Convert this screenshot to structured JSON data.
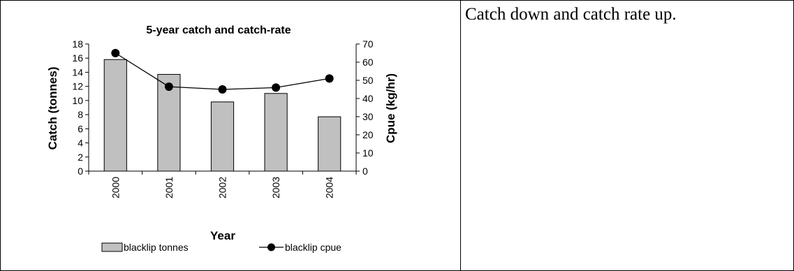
{
  "comment": "Catch down and catch rate up.",
  "chart_data": {
    "type": "bar+line",
    "title": "5-year catch and catch-rate",
    "xlabel": "Year",
    "ylabel": "Catch (tonnes)",
    "y2label": "Cpue (kg/hr)",
    "categories": [
      "2000",
      "2001",
      "2002",
      "2003",
      "2004"
    ],
    "ylim": [
      0,
      18
    ],
    "y2lim": [
      0,
      70
    ],
    "yticks": [
      "0",
      "2",
      "4",
      "6",
      "8",
      "10",
      "12",
      "14",
      "16",
      "18"
    ],
    "y2ticks": [
      "0",
      "10",
      "20",
      "30",
      "40",
      "50",
      "60",
      "70"
    ],
    "series": [
      {
        "name": "blacklip tonnes",
        "type": "bar",
        "axis": "left",
        "values": [
          15.8,
          13.7,
          9.8,
          11.0,
          7.7
        ]
      },
      {
        "name": "blacklip cpue",
        "type": "line",
        "axis": "right",
        "values": [
          65,
          46.5,
          45,
          46,
          51
        ]
      }
    ],
    "grid": false,
    "legend": "bottom",
    "colors": {
      "bar_fill": "#c0c0c0",
      "line": "#000000"
    }
  }
}
